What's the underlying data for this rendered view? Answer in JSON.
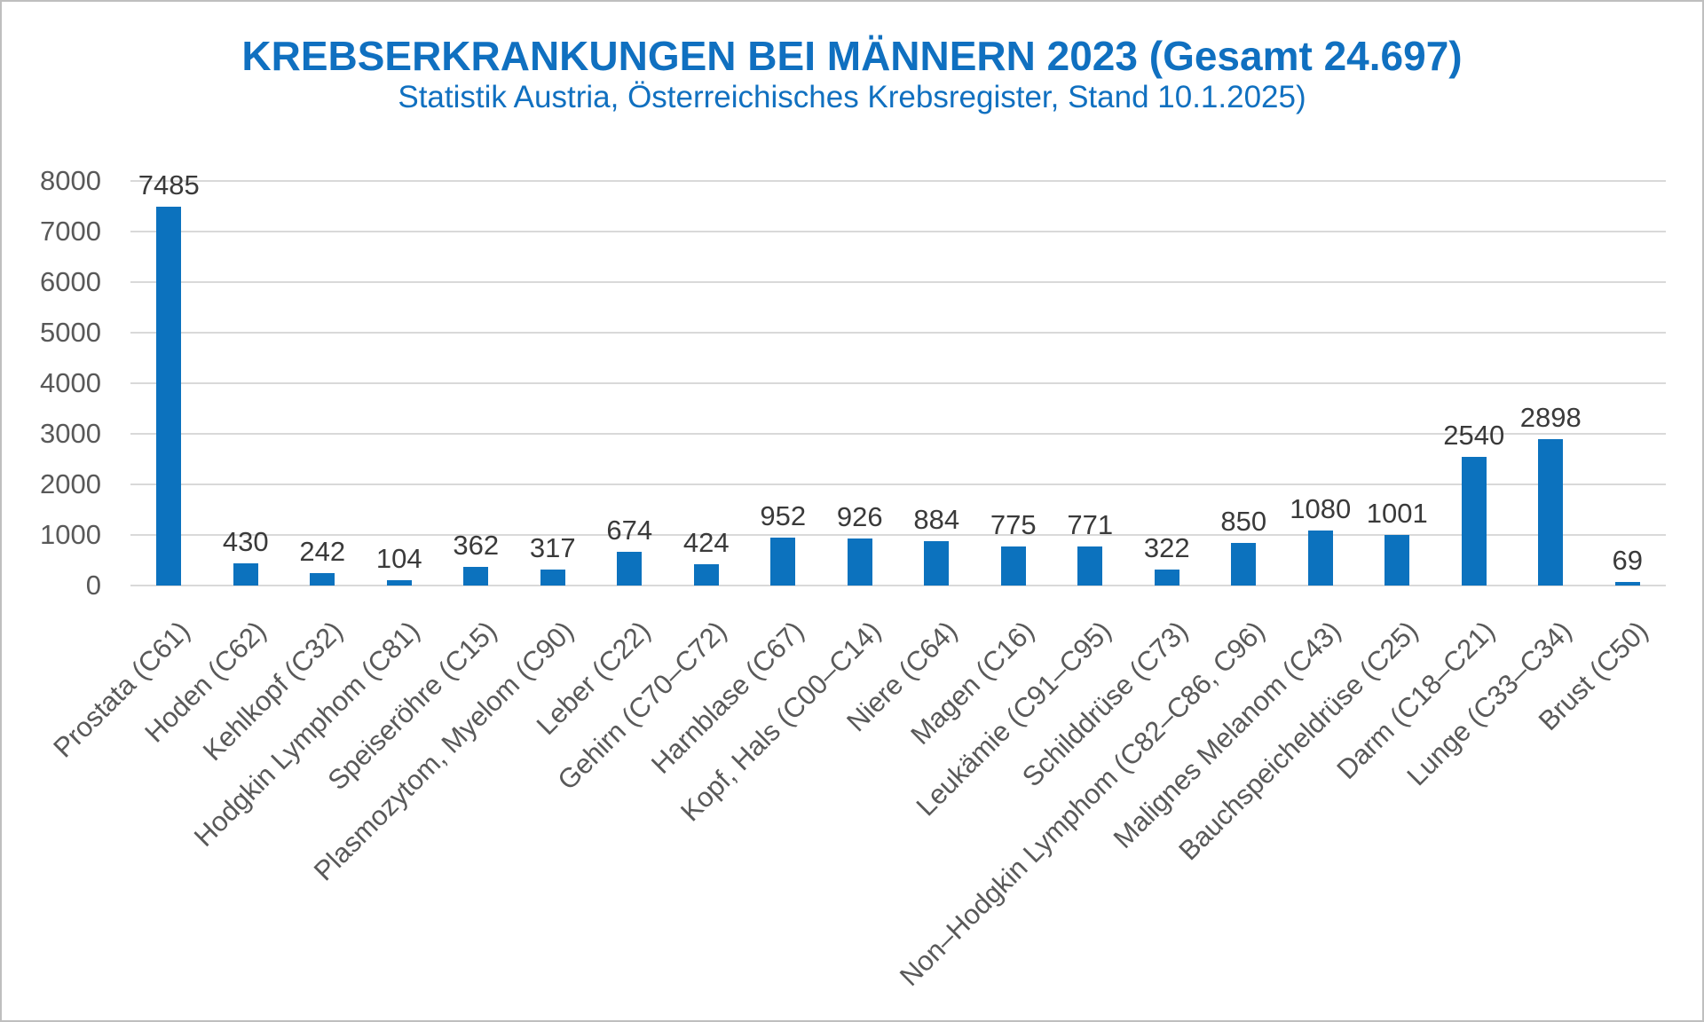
{
  "chart_data": {
    "type": "bar",
    "title": "KREBSERKRANKUNGEN BEI MÄNNERN 2023 (Gesamt 24.697)",
    "subtitle": "Statistik Austria, Österreichisches Krebsregister, Stand 10.1.2025)",
    "categories": [
      "Prostata (C61)",
      "Hoden (C62)",
      "Kehlkopf (C32)",
      "Hodgkin Lymphom (C81)",
      "Speiseröhre (C15)",
      "Plasmozytom, Myelom (C90)",
      "Leber (C22)",
      "Gehirn (C70–C72)",
      "Harnblase (C67)",
      "Kopf, Hals (C00–C14)",
      "Niere (C64)",
      "Magen (C16)",
      "Leukämie (C91–C95)",
      "Schilddrüse (C73)",
      "Non–Hodgkin Lymphom (C82–C86, C96)",
      "Malignes Melanom (C43)",
      "Bauchspeicheldrüse (C25)",
      "Darm (C18–C21)",
      "Lunge (C33–C34)",
      "Brust (C50)"
    ],
    "values": [
      7485,
      430,
      242,
      104,
      362,
      317,
      674,
      424,
      952,
      926,
      884,
      775,
      771,
      322,
      850,
      1080,
      1001,
      2540,
      2898,
      69
    ],
    "xlabel": "",
    "ylabel": "",
    "ylim": [
      0,
      8000
    ],
    "yticks": [
      0,
      1000,
      2000,
      3000,
      4000,
      5000,
      6000,
      7000,
      8000
    ],
    "grid": true,
    "legend": false,
    "colors": {
      "bar": "#0c72be",
      "title": "#1070c0",
      "subtitle": "#1070c0",
      "value_label": "#3a3a3a",
      "axis_label": "#595959",
      "gridline": "#d9d9d9",
      "frame_border": "#bfbfbf"
    }
  }
}
